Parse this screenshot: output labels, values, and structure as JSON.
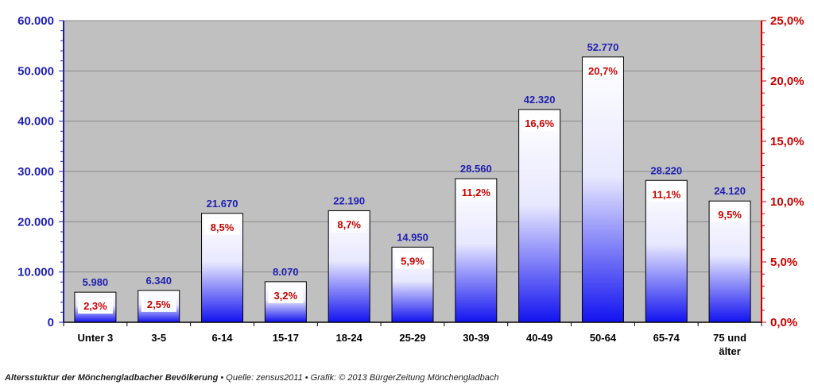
{
  "chart_data": {
    "type": "bar",
    "categories": [
      "Unter 3",
      "3-5",
      "6-14",
      "15-17",
      "18-24",
      "25-29",
      "30-39",
      "40-49",
      "50-64",
      "65-74",
      "75 und älter"
    ],
    "category_lines": [
      [
        "Unter 3"
      ],
      [
        "3-5"
      ],
      [
        "6-14"
      ],
      [
        "15-17"
      ],
      [
        "18-24"
      ],
      [
        "25-29"
      ],
      [
        "30-39"
      ],
      [
        "40-49"
      ],
      [
        "50-64"
      ],
      [
        "65-74"
      ],
      [
        "75 und",
        "älter"
      ]
    ],
    "values": [
      5980,
      6340,
      21670,
      8070,
      22190,
      14950,
      28560,
      42320,
      52770,
      28220,
      24120
    ],
    "value_labels": [
      "5.980",
      "6.340",
      "21.670",
      "8.070",
      "22.190",
      "14.950",
      "28.560",
      "42.320",
      "52.770",
      "28.220",
      "24.120"
    ],
    "percent_values": [
      2.3,
      2.5,
      8.5,
      3.2,
      8.7,
      5.9,
      11.2,
      16.6,
      20.7,
      11.1,
      9.5
    ],
    "percent_labels": [
      "2,3%",
      "2,5%",
      "8,5%",
      "3,2%",
      "8,7%",
      "5,9%",
      "11,2%",
      "16,6%",
      "20,7%",
      "11,1%",
      "9,5%"
    ],
    "ylim": [
      0,
      60000
    ],
    "y_ticks": [
      0,
      10000,
      20000,
      30000,
      40000,
      50000,
      60000
    ],
    "y_tick_labels": [
      "0",
      "10.000",
      "20.000",
      "30.000",
      "40.000",
      "50.000",
      "60.000"
    ],
    "y2lim": [
      0,
      25
    ],
    "y2_ticks": [
      0,
      5,
      10,
      15,
      20,
      25
    ],
    "y2_tick_labels": [
      "0,0%",
      "5,0%",
      "10,0%",
      "15,0%",
      "20,0%",
      "25,0%"
    ],
    "grid": true,
    "colors": {
      "plot_background": "#c0c0c0",
      "bar_top": "#ffffff",
      "bar_bottom": "#1212f0",
      "left_axis": "#1f1fb4",
      "right_axis": "#cc0000",
      "gridline": "#8a8a8a"
    }
  },
  "caption": {
    "title": "Altersstuktur der Mönchengladbacher Bevölkerung",
    "rest": " • Quelle: zensus2011 • Grafik: © 2013 BürgerZeitung Mönchengladbach"
  }
}
